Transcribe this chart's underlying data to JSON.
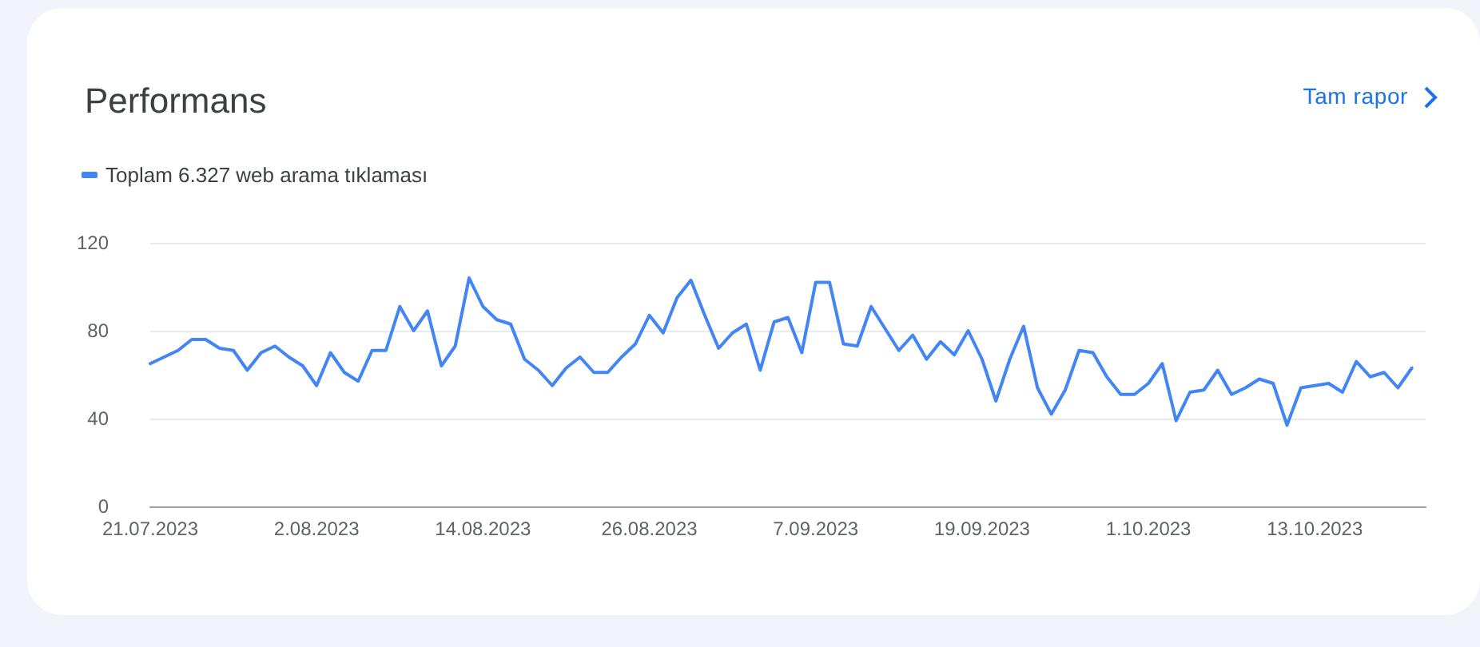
{
  "chart_data": {
    "type": "line",
    "title": "Performans",
    "annotations": [
      "Tam rapor"
    ],
    "x": [
      "2023-07-21",
      "2023-07-22",
      "2023-07-23",
      "2023-07-24",
      "2023-07-25",
      "2023-07-26",
      "2023-07-27",
      "2023-07-28",
      "2023-07-29",
      "2023-07-30",
      "2023-07-31",
      "2023-08-01",
      "2023-08-02",
      "2023-08-03",
      "2023-08-04",
      "2023-08-05",
      "2023-08-06",
      "2023-08-07",
      "2023-08-08",
      "2023-08-09",
      "2023-08-10",
      "2023-08-11",
      "2023-08-12",
      "2023-08-13",
      "2023-08-14",
      "2023-08-15",
      "2023-08-16",
      "2023-08-17",
      "2023-08-18",
      "2023-08-19",
      "2023-08-20",
      "2023-08-21",
      "2023-08-22",
      "2023-08-23",
      "2023-08-24",
      "2023-08-25",
      "2023-08-26",
      "2023-08-27",
      "2023-08-28",
      "2023-08-29",
      "2023-08-30",
      "2023-08-31",
      "2023-09-01",
      "2023-09-02",
      "2023-09-03",
      "2023-09-04",
      "2023-09-05",
      "2023-09-06",
      "2023-09-07",
      "2023-09-08",
      "2023-09-09",
      "2023-09-10",
      "2023-09-11",
      "2023-09-12",
      "2023-09-13",
      "2023-09-14",
      "2023-09-15",
      "2023-09-16",
      "2023-09-17",
      "2023-09-18",
      "2023-09-19",
      "2023-09-20",
      "2023-09-21",
      "2023-09-22",
      "2023-09-23",
      "2023-09-24",
      "2023-09-25",
      "2023-09-26",
      "2023-09-27",
      "2023-09-28",
      "2023-09-29",
      "2023-09-30",
      "2023-10-01",
      "2023-10-02",
      "2023-10-03",
      "2023-10-04",
      "2023-10-05",
      "2023-10-06",
      "2023-10-07",
      "2023-10-08",
      "2023-10-09",
      "2023-10-10",
      "2023-10-11",
      "2023-10-12",
      "2023-10-13",
      "2023-10-14",
      "2023-10-15",
      "2023-10-16",
      "2023-10-17",
      "2023-10-18",
      "2023-10-19",
      "2023-10-20"
    ],
    "series": [
      {
        "name": "Toplam 6.327 web arama tıklaması",
        "color": "#4285f4",
        "values": [
          65,
          68,
          71,
          76,
          76,
          72,
          71,
          62,
          70,
          73,
          68,
          64,
          55,
          70,
          61,
          57,
          71,
          71,
          91,
          80,
          89,
          64,
          73,
          104,
          91,
          85,
          83,
          67,
          62,
          55,
          63,
          68,
          61,
          61,
          68,
          74,
          87,
          79,
          95,
          103,
          87,
          72,
          79,
          83,
          62,
          84,
          86,
          70,
          102,
          102,
          74,
          73,
          91,
          81,
          71,
          78,
          67,
          75,
          69,
          80,
          67,
          48,
          67,
          82,
          54,
          42,
          53,
          71,
          70,
          59,
          51,
          51,
          56,
          65,
          39,
          52,
          53,
          62,
          51,
          54,
          58,
          56,
          37,
          54,
          55,
          56,
          52,
          66,
          59,
          61,
          54,
          63
        ]
      }
    ],
    "xlim": [
      "2023-07-21",
      "2023-10-21"
    ],
    "xticks": [
      {
        "value": "2023-07-21",
        "label": "21.07.2023"
      },
      {
        "value": "2023-08-02",
        "label": "2.08.2023"
      },
      {
        "value": "2023-08-14",
        "label": "14.08.2023"
      },
      {
        "value": "2023-08-26",
        "label": "26.08.2023"
      },
      {
        "value": "2023-09-07",
        "label": "7.09.2023"
      },
      {
        "value": "2023-09-19",
        "label": "19.09.2023"
      },
      {
        "value": "2023-10-01",
        "label": "1.10.2023"
      },
      {
        "value": "2023-10-13",
        "label": "13.10.2023"
      }
    ],
    "ylim": [
      0,
      120
    ],
    "yticks": [
      0,
      40,
      80,
      120
    ],
    "grid": "y",
    "legend": "top left",
    "marker": "none",
    "line_style": "solid"
  }
}
